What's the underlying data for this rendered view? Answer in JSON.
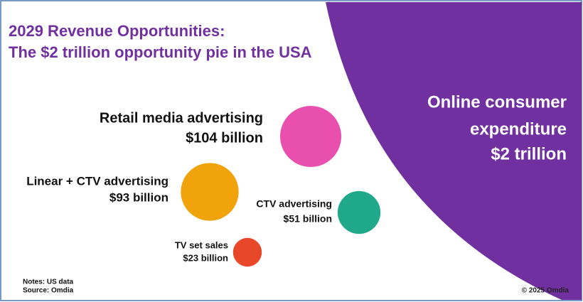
{
  "chart_data": {
    "type": "bubble",
    "title": [
      "2029 Revenue Opportunities:",
      "The $2 trillion opportunity pie in the USA"
    ],
    "categories": [
      "Retail media advertising",
      "Linear + CTV advertising",
      "CTV advertising",
      "TV set sales"
    ],
    "values": [
      104,
      93,
      51,
      23
    ],
    "value_labels": [
      "$104 billion",
      "$93 billion",
      "$51 billion",
      "$23 billion"
    ],
    "colors": [
      "#e94fad",
      "#f0a30a",
      "#1fa88a",
      "#e8472a"
    ],
    "headline": {
      "lines": [
        "Online consumer",
        "expenditure",
        "$2 trillion"
      ],
      "color": "#7030a0"
    },
    "notes": [
      "Notes: US data",
      "Source: Omdia"
    ],
    "copyright": "© 2025 Omdia"
  }
}
